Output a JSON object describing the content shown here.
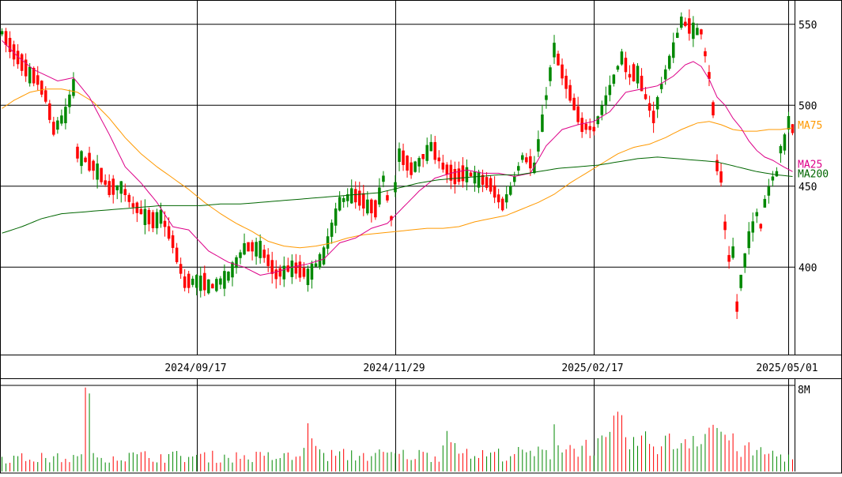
{
  "chart_data": {
    "type": "candlestick",
    "price_axis": {
      "ticks": [
        400,
        450,
        500,
        550
      ],
      "ylim": [
        346,
        565
      ]
    },
    "date_labels": [
      {
        "label": "2024/09/17",
        "index": 49
      },
      {
        "label": "2024/11/29",
        "index": 99
      },
      {
        "label": "2025/02/17",
        "index": 149
      },
      {
        "label": "2025/05/01",
        "index": 198
      }
    ],
    "ma_labels": [
      {
        "key": "ma75",
        "text": "MA75",
        "color": "#ff9900"
      },
      {
        "key": "ma25",
        "text": "MA25",
        "color": "#dd0088"
      },
      {
        "key": "ma200",
        "text": "MA200",
        "color": "#006600"
      }
    ],
    "colors": {
      "up": "#008800",
      "down": "#ff0000",
      "grid": "#000000"
    },
    "volume_axis": {
      "label": "8M",
      "max": 8000000
    },
    "close_anchors": [
      [
        0,
        545
      ],
      [
        3,
        532
      ],
      [
        6,
        522
      ],
      [
        9,
        515
      ],
      [
        11,
        505
      ],
      [
        13,
        485
      ],
      [
        16,
        495
      ],
      [
        18,
        512
      ],
      [
        19,
        470
      ],
      [
        24,
        460
      ],
      [
        27,
        448
      ],
      [
        30,
        450
      ],
      [
        33,
        438
      ],
      [
        36,
        432
      ],
      [
        38,
        428
      ],
      [
        40,
        432
      ],
      [
        43,
        415
      ],
      [
        46,
        390
      ],
      [
        49,
        392
      ],
      [
        53,
        388
      ],
      [
        57,
        395
      ],
      [
        61,
        412
      ],
      [
        65,
        412
      ],
      [
        69,
        395
      ],
      [
        73,
        400
      ],
      [
        77,
        395
      ],
      [
        81,
        408
      ],
      [
        85,
        440
      ],
      [
        88,
        445
      ],
      [
        91,
        440
      ],
      [
        94,
        435
      ],
      [
        96,
        455
      ],
      [
        98,
        430
      ],
      [
        100,
        470
      ],
      [
        103,
        460
      ],
      [
        106,
        468
      ],
      [
        108,
        475
      ],
      [
        111,
        462
      ],
      [
        114,
        455
      ],
      [
        117,
        458
      ],
      [
        120,
        455
      ],
      [
        123,
        450
      ],
      [
        126,
        438
      ],
      [
        128,
        448
      ],
      [
        131,
        468
      ],
      [
        134,
        462
      ],
      [
        136,
        490
      ],
      [
        139,
        535
      ],
      [
        141,
        520
      ],
      [
        144,
        500
      ],
      [
        146,
        487
      ],
      [
        149,
        485
      ],
      [
        153,
        510
      ],
      [
        156,
        530
      ],
      [
        158,
        518
      ],
      [
        160,
        520
      ],
      [
        162,
        505
      ],
      [
        164,
        492
      ],
      [
        166,
        512
      ],
      [
        169,
        535
      ],
      [
        171,
        552
      ],
      [
        173,
        548
      ],
      [
        176,
        545
      ],
      [
        178,
        518
      ],
      [
        179,
        497
      ],
      [
        180,
        462
      ],
      [
        181,
        455
      ],
      [
        182,
        425
      ],
      [
        183,
        405
      ],
      [
        184,
        410
      ],
      [
        185,
        375
      ],
      [
        186,
        392
      ],
      [
        187,
        405
      ],
      [
        188,
        418
      ],
      [
        190,
        433
      ],
      [
        191,
        425
      ],
      [
        192,
        440
      ],
      [
        194,
        455
      ],
      [
        195,
        458
      ],
      [
        196,
        473
      ],
      [
        197,
        478
      ],
      [
        198,
        490
      ],
      [
        199,
        485
      ]
    ],
    "ma_anchors": {
      "ma25": [
        [
          0,
          540
        ],
        [
          4,
          530
        ],
        [
          8,
          522
        ],
        [
          14,
          515
        ],
        [
          18,
          517
        ],
        [
          22,
          505
        ],
        [
          27,
          482
        ],
        [
          31,
          462
        ],
        [
          35,
          452
        ],
        [
          39,
          440
        ],
        [
          43,
          425
        ],
        [
          47,
          423
        ],
        [
          52,
          410
        ],
        [
          57,
          403
        ],
        [
          61,
          400
        ],
        [
          65,
          395
        ],
        [
          69,
          397
        ],
        [
          73,
          400
        ],
        [
          77,
          402
        ],
        [
          81,
          405
        ],
        [
          85,
          415
        ],
        [
          89,
          418
        ],
        [
          93,
          424
        ],
        [
          97,
          427
        ],
        [
          101,
          437
        ],
        [
          105,
          447
        ],
        [
          109,
          455
        ],
        [
          113,
          458
        ],
        [
          117,
          460
        ],
        [
          121,
          458
        ],
        [
          125,
          458
        ],
        [
          129,
          456
        ],
        [
          133,
          458
        ],
        [
          137,
          475
        ],
        [
          141,
          485
        ],
        [
          145,
          488
        ],
        [
          149,
          490
        ],
        [
          153,
          496
        ],
        [
          157,
          508
        ],
        [
          161,
          510
        ],
        [
          165,
          512
        ],
        [
          169,
          518
        ],
        [
          172,
          525
        ],
        [
          174,
          527
        ],
        [
          176,
          524
        ],
        [
          178,
          516
        ],
        [
          180,
          505
        ],
        [
          182,
          500
        ],
        [
          184,
          492
        ],
        [
          186,
          486
        ],
        [
          188,
          478
        ],
        [
          190,
          472
        ],
        [
          192,
          468
        ],
        [
          194,
          466
        ],
        [
          196,
          463
        ],
        [
          199,
          459
        ]
      ],
      "ma75": [
        [
          0,
          498
        ],
        [
          3,
          503
        ],
        [
          7,
          508
        ],
        [
          11,
          510
        ],
        [
          15,
          510
        ],
        [
          19,
          508
        ],
        [
          23,
          502
        ],
        [
          27,
          492
        ],
        [
          31,
          480
        ],
        [
          35,
          470
        ],
        [
          39,
          462
        ],
        [
          43,
          455
        ],
        [
          47,
          448
        ],
        [
          51,
          440
        ],
        [
          55,
          433
        ],
        [
          59,
          427
        ],
        [
          63,
          422
        ],
        [
          67,
          416
        ],
        [
          71,
          413
        ],
        [
          75,
          412
        ],
        [
          79,
          413
        ],
        [
          83,
          415
        ],
        [
          87,
          418
        ],
        [
          91,
          420
        ],
        [
          95,
          421
        ],
        [
          99,
          422
        ],
        [
          103,
          423
        ],
        [
          107,
          424
        ],
        [
          111,
          424
        ],
        [
          115,
          425
        ],
        [
          119,
          428
        ],
        [
          123,
          430
        ],
        [
          127,
          432
        ],
        [
          131,
          436
        ],
        [
          135,
          440
        ],
        [
          139,
          445
        ],
        [
          143,
          452
        ],
        [
          147,
          458
        ],
        [
          151,
          464
        ],
        [
          155,
          470
        ],
        [
          159,
          474
        ],
        [
          163,
          476
        ],
        [
          167,
          480
        ],
        [
          171,
          485
        ],
        [
          175,
          489
        ],
        [
          178,
          490
        ],
        [
          181,
          488
        ],
        [
          184,
          485
        ],
        [
          187,
          484
        ],
        [
          190,
          484
        ],
        [
          193,
          485
        ],
        [
          196,
          485
        ],
        [
          199,
          486
        ]
      ],
      "ma200": [
        [
          0,
          421
        ],
        [
          5,
          425
        ],
        [
          10,
          430
        ],
        [
          15,
          433
        ],
        [
          20,
          434
        ],
        [
          25,
          435
        ],
        [
          30,
          436
        ],
        [
          35,
          437
        ],
        [
          40,
          438
        ],
        [
          45,
          438
        ],
        [
          50,
          438
        ],
        [
          55,
          439
        ],
        [
          60,
          439
        ],
        [
          65,
          440
        ],
        [
          70,
          441
        ],
        [
          75,
          442
        ],
        [
          80,
          443
        ],
        [
          85,
          444
        ],
        [
          90,
          445
        ],
        [
          95,
          446
        ],
        [
          100,
          449
        ],
        [
          105,
          452
        ],
        [
          110,
          454
        ],
        [
          115,
          455
        ],
        [
          120,
          456
        ],
        [
          125,
          457
        ],
        [
          130,
          457
        ],
        [
          135,
          459
        ],
        [
          140,
          461
        ],
        [
          145,
          462
        ],
        [
          150,
          463
        ],
        [
          155,
          465
        ],
        [
          160,
          467
        ],
        [
          165,
          468
        ],
        [
          170,
          467
        ],
        [
          175,
          466
        ],
        [
          180,
          465
        ],
        [
          185,
          462
        ],
        [
          190,
          459
        ],
        [
          195,
          457
        ],
        [
          199,
          456
        ]
      ]
    },
    "vol_anchors": [
      [
        0,
        1.3
      ],
      [
        20,
        1.3
      ],
      [
        21,
        7.8
      ],
      [
        22,
        5.5
      ],
      [
        23,
        1.5
      ],
      [
        75,
        1.4
      ],
      [
        78,
        4.8
      ],
      [
        80,
        1.6
      ],
      [
        110,
        1.6
      ],
      [
        113,
        4.7
      ],
      [
        116,
        1.6
      ],
      [
        138,
        1.8
      ],
      [
        139,
        5.0
      ],
      [
        141,
        2.2
      ],
      [
        152,
        2.6
      ],
      [
        155,
        4.5
      ],
      [
        158,
        2.8
      ],
      [
        170,
        2.8
      ],
      [
        180,
        4.5
      ],
      [
        182,
        3.6
      ],
      [
        185,
        2.2
      ],
      [
        199,
        1.4
      ]
    ]
  }
}
